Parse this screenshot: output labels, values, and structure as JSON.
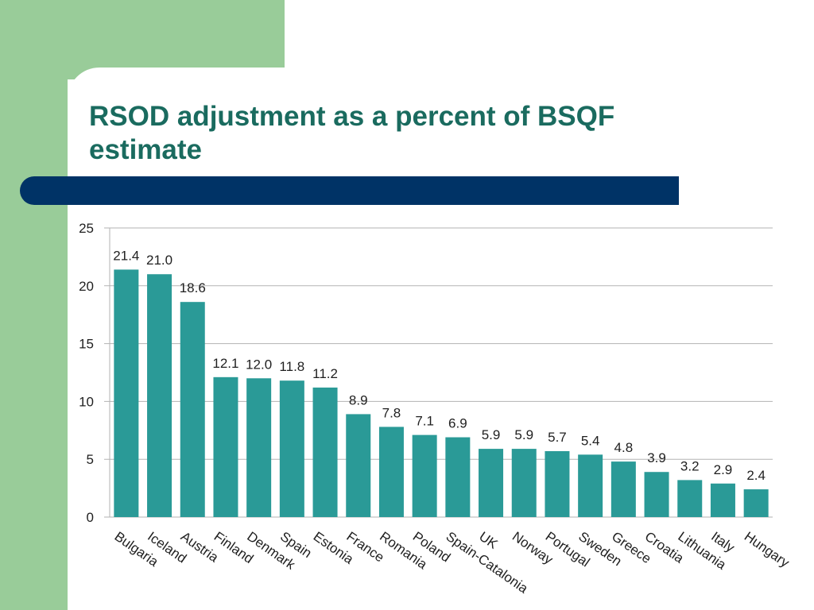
{
  "slide": {
    "title": "RSOD adjustment as a percent of BSQF estimate"
  },
  "colors": {
    "accent_green": "#99cc99",
    "title_text": "#1a6b5f",
    "title_bar": "#003366",
    "bar_fill": "#2a9a97",
    "grid": "#b3b3b3",
    "text": "#1f1f1f"
  },
  "chart_data": {
    "type": "bar",
    "categories": [
      "Bulgaria",
      "Iceland",
      "Austria",
      "Finland",
      "Denmark",
      "Spain",
      "Estonia",
      "France",
      "Romania",
      "Poland",
      "Spain-Catalonia",
      "UK",
      "Norway",
      "Portugal",
      "Sweden",
      "Greece",
      "Croatia",
      "Lithuania",
      "Italy",
      "Hungary"
    ],
    "values": [
      21.4,
      21.0,
      18.6,
      12.1,
      12.0,
      11.8,
      11.2,
      8.9,
      7.8,
      7.1,
      6.9,
      5.9,
      5.9,
      5.7,
      5.4,
      4.8,
      3.9,
      3.2,
      2.9,
      2.4
    ],
    "data_labels": [
      "21.4",
      "21.0",
      "18.6",
      "12.1",
      "12.0",
      "11.8",
      "11.2",
      "8.9",
      "7.8",
      "7.1",
      "6.9",
      "5.9",
      "5.9",
      "5.7",
      "5.4",
      "4.8",
      "3.9",
      "3.2",
      "2.9",
      "2.4"
    ],
    "yticks": [
      0,
      5,
      10,
      15,
      20,
      25
    ],
    "ylim": [
      0,
      25
    ],
    "grid": true,
    "legend": false,
    "title": "",
    "xlabel": "",
    "ylabel": ""
  }
}
